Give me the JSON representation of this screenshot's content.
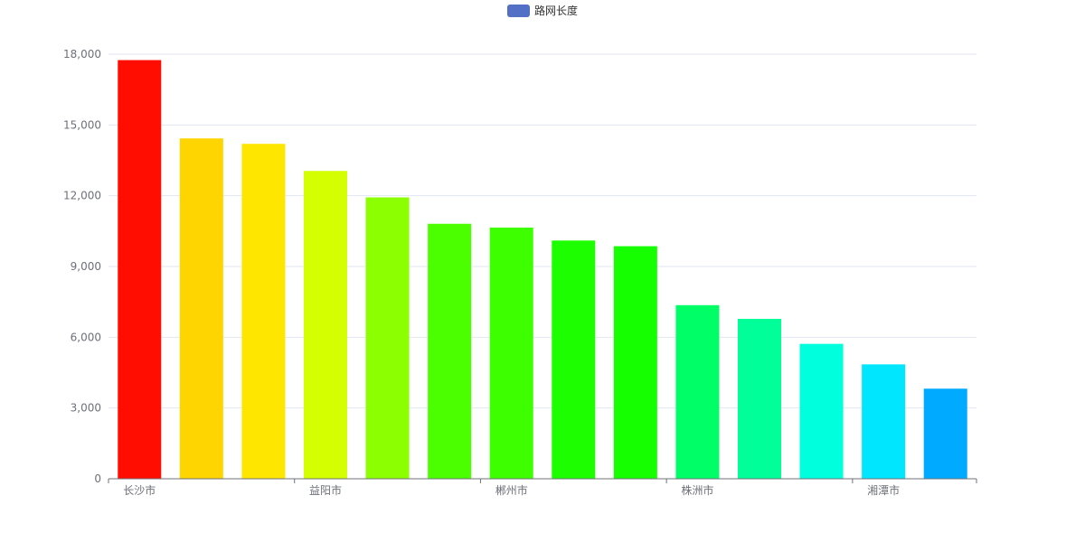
{
  "chart_data": {
    "type": "bar",
    "legend": {
      "label": "路网长度",
      "color": "#5470c6",
      "position": "top-center"
    },
    "categories": [
      "长沙市",
      "",
      "",
      "益阳市",
      "",
      "",
      "郴州市",
      "",
      "",
      "株洲市",
      "",
      "",
      "湘潭市",
      ""
    ],
    "x_tick_labels": [
      "长沙市",
      "益阳市",
      "郴州市",
      "株洲市",
      "湘潭市"
    ],
    "series": [
      {
        "name": "路网长度",
        "values": [
          17750,
          14430,
          14200,
          13050,
          11930,
          10810,
          10650,
          10100,
          9860,
          7360,
          6780,
          5720,
          4850,
          3820
        ]
      }
    ],
    "bar_colors": [
      "#ff0d00",
      "#ffd500",
      "#ffe600",
      "#d4ff00",
      "#8cff00",
      "#4cff00",
      "#3dff00",
      "#1dff00",
      "#16ff00",
      "#00ff66",
      "#00ff99",
      "#00ffdd",
      "#00e6ff",
      "#00aaff"
    ],
    "ylim": [
      0,
      18000
    ],
    "y_ticks": [
      "0",
      "3,000",
      "6,000",
      "9,000",
      "12,000",
      "15,000",
      "18,000"
    ],
    "grid": true
  }
}
